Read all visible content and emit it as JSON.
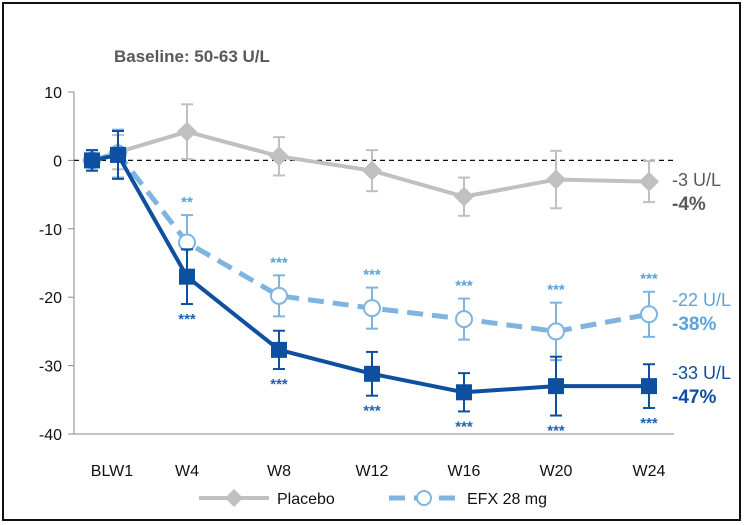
{
  "chart_data": {
    "type": "line",
    "title": "Baseline: 50-63 U/L",
    "categories": [
      "BL",
      "W1",
      "W4",
      "W8",
      "W12",
      "W16",
      "W20",
      "W24"
    ],
    "category_labels": [
      "BLW1",
      "W4",
      "W8",
      "W12",
      "W16",
      "W20",
      "W24"
    ],
    "ylim": [
      -40,
      10
    ],
    "yticks": [
      10,
      0,
      -10,
      -20,
      -30,
      -40
    ],
    "reference_line": 0,
    "grid": false,
    "legend_position": "bottom",
    "series": [
      {
        "name": "Placebo",
        "color": "#c0c0c0",
        "marker": "diamond",
        "line_style": "solid",
        "values": [
          0,
          1.2,
          4.2,
          0.6,
          -1.5,
          -5.3,
          -2.8,
          -3.1
        ],
        "err_low": [
          1.5,
          2.5,
          4,
          2.8,
          3,
          2.8,
          4.2,
          3
        ],
        "err_high": [
          1.5,
          2.5,
          4,
          2.8,
          3,
          2.8,
          4.2,
          3
        ],
        "end_labels": [
          "-3 U/L",
          "-4%"
        ],
        "end_label_colors": [
          "#595959",
          "#595959"
        ],
        "annotations_above": [
          "",
          "",
          "",
          "",
          "",
          "",
          "",
          ""
        ],
        "annotations_below": [
          "",
          "",
          "",
          "",
          "",
          "",
          "",
          ""
        ]
      },
      {
        "name": "EFX 28 mg",
        "color": "#7fb4e0",
        "marker": "open-circle",
        "line_style": "dashed",
        "values": [
          0,
          1,
          -12,
          -19.8,
          -21.6,
          -23.2,
          -25,
          -22.5
        ],
        "err_low": [
          1.5,
          3.5,
          4,
          3,
          3,
          3,
          4.2,
          3.3
        ],
        "err_high": [
          1.5,
          3.5,
          4,
          3,
          3,
          3,
          4.2,
          3.3
        ],
        "end_labels": [
          "-22 U/L",
          "-38%"
        ],
        "end_label_colors": [
          "#5ba3d9",
          "#5ba3d9"
        ],
        "annotations_above": [
          "",
          "",
          "**",
          "***",
          "***",
          "***",
          "***",
          "***"
        ],
        "annotations_below": [
          "",
          "",
          "",
          "",
          "",
          "",
          "",
          ""
        ]
      },
      {
        "name": "",
        "color": "#0e4fa0",
        "marker": "square",
        "line_style": "solid",
        "values": [
          0,
          0.8,
          -17,
          -27.7,
          -31.2,
          -33.9,
          -33,
          -33
        ],
        "err_low": [
          1.5,
          3.5,
          4,
          2.8,
          3.2,
          2.8,
          4.3,
          3.2
        ],
        "err_high": [
          1.5,
          3.5,
          4,
          2.8,
          3.2,
          2.8,
          4.3,
          3.2
        ],
        "end_labels": [
          "-33 U/L",
          "-47%"
        ],
        "end_label_colors": [
          "#0e4fa0",
          "#0e4fa0"
        ],
        "annotations_above": [
          "",
          "",
          "",
          "",
          "",
          "",
          "",
          ""
        ],
        "annotations_below": [
          "",
          "",
          "***",
          "***",
          "***",
          "***",
          "***",
          "***"
        ]
      }
    ]
  }
}
